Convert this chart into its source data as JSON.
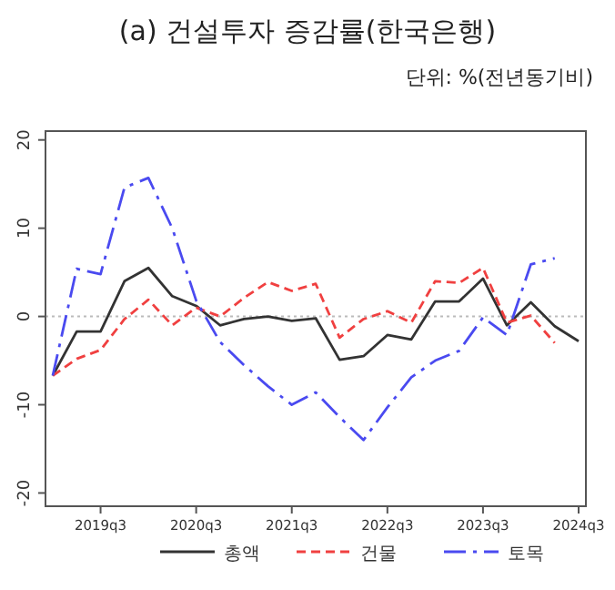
{
  "chart_data": {
    "type": "line",
    "title": "(a) 건설투자 증감률(한국은행)",
    "subtitle": "단위: %(전년동기비)",
    "categories": [
      null,
      null,
      "2019q3",
      null,
      null,
      null,
      "2020q3",
      null,
      null,
      null,
      "2021q3",
      null,
      null,
      null,
      "2022q3",
      null,
      null,
      null,
      "2023q3",
      null,
      null,
      null,
      "2024q3"
    ],
    "series": [
      {
        "name": "총액",
        "color": "#333333",
        "line_style": "solid",
        "values": [
          -6.7,
          -1.7,
          -1.7,
          4.0,
          5.5,
          2.3,
          1.2,
          -1.0,
          -0.3,
          0,
          -0.5,
          -0.2,
          -4.9,
          -4.5,
          -2.1,
          -2.6,
          1.7,
          1.7,
          4.3,
          -1.0,
          1.6,
          -1.1,
          -2.8
        ]
      },
      {
        "name": "건물",
        "color": "#f04040",
        "line_style": "dashed",
        "values": [
          -6.7,
          -4.8,
          -3.8,
          -0.3,
          1.9,
          -1.0,
          1.0,
          0,
          2.1,
          3.9,
          2.9,
          3.7,
          -2.4,
          -0.3,
          0.6,
          -0.7,
          4.0,
          3.8,
          5.5,
          -0.7,
          0.1,
          -3.0,
          null
        ]
      },
      {
        "name": "토목",
        "color": "#4a4af0",
        "line_style": "dashdot",
        "values": [
          -6.7,
          5.4,
          4.8,
          14.6,
          15.7,
          10.0,
          1.8,
          -2.9,
          -5.5,
          -7.9,
          -10.0,
          -8.6,
          -11.4,
          -14.0,
          -10.3,
          -6.9,
          -5.0,
          -3.9,
          -0.1,
          -2.1,
          5.9,
          6.6,
          null
        ]
      }
    ],
    "ylim": [
      -21.5,
      21
    ],
    "yticks": [
      -20,
      -10,
      0,
      10,
      20
    ],
    "ref_lines": [
      {
        "axis": "y",
        "value": 0,
        "color": "#bbbbbb",
        "line_style": "dotted"
      }
    ],
    "legend": "bottom",
    "grid": false
  }
}
